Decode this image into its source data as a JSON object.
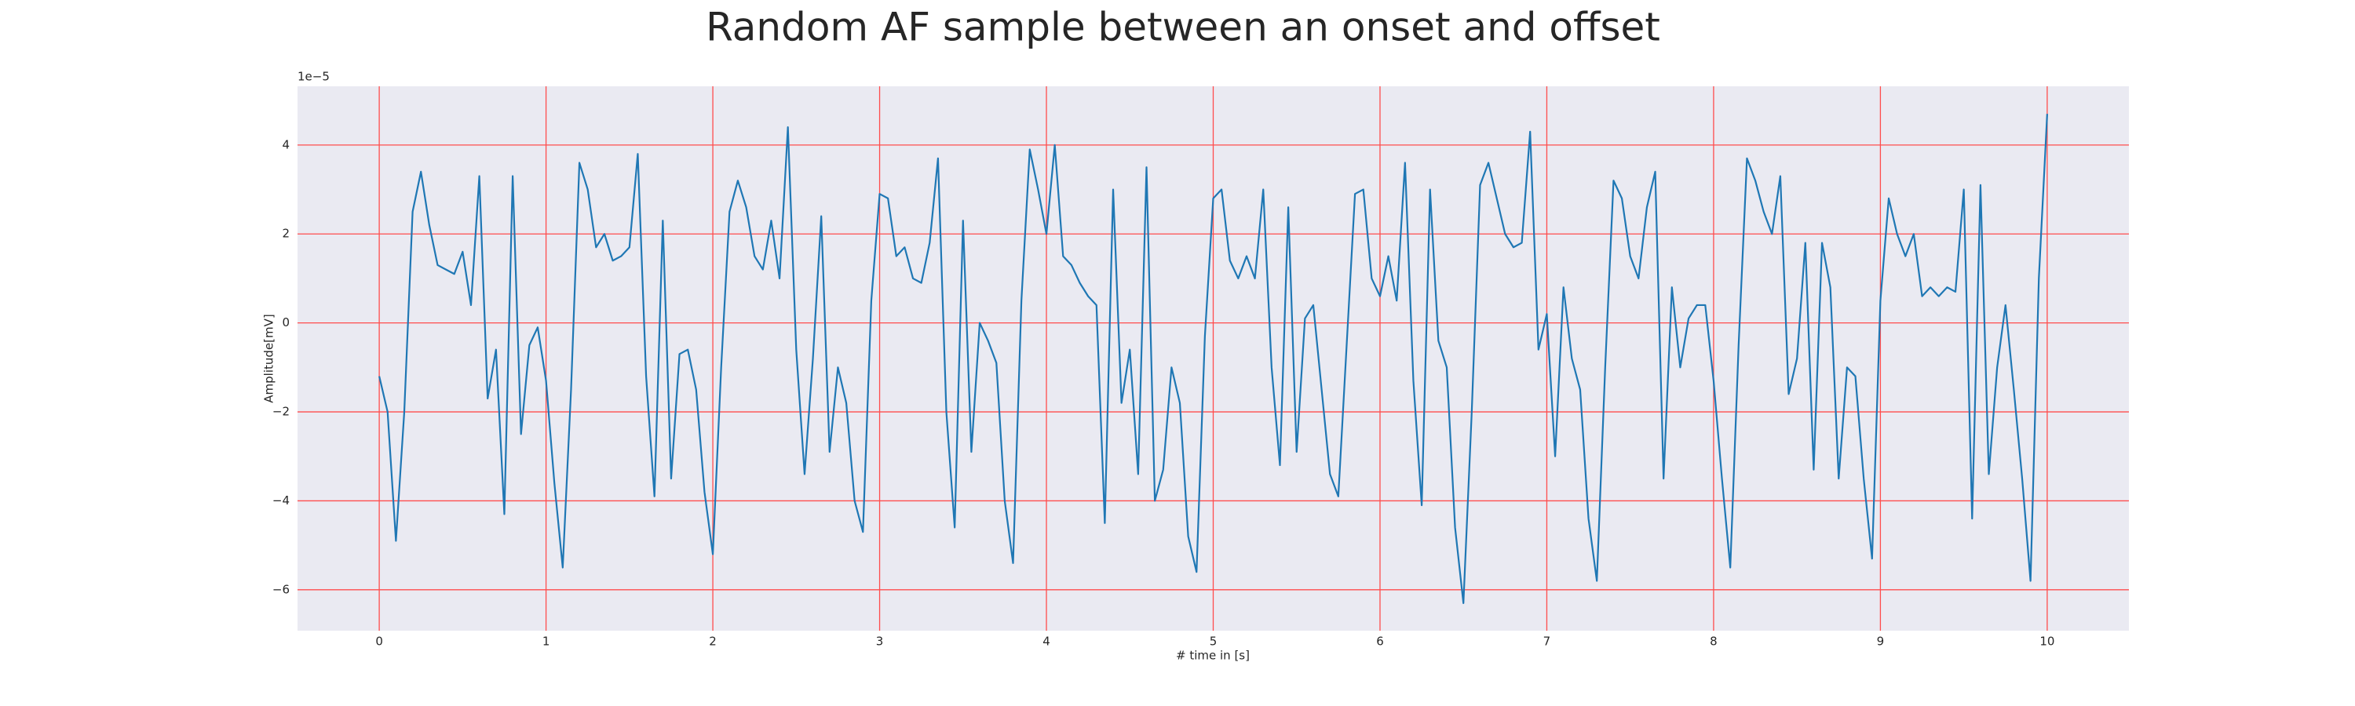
{
  "chart_data": {
    "type": "line",
    "title": "Random AF sample between an onset and offset",
    "xlabel": "# time in [s]",
    "ylabel": "Amplitude[mV]",
    "y_offset_text": "1e−5",
    "xlim": [
      -0.49,
      10.49
    ],
    "ylim": [
      -6.92,
      5.32
    ],
    "xticks": [
      0,
      1,
      2,
      3,
      4,
      5,
      6,
      7,
      8,
      9,
      10
    ],
    "yticks": [
      {
        "value": -6,
        "label": "−6"
      },
      {
        "value": -4,
        "label": "−4"
      },
      {
        "value": -2,
        "label": "−2"
      },
      0,
      2,
      4
    ],
    "grid": true,
    "grid_color": "#ff4d4d",
    "background": "#eaeaf2",
    "x": [
      0,
      0.05,
      0.1,
      0.15,
      0.2,
      0.25,
      0.3,
      0.35,
      0.4,
      0.45,
      0.5,
      0.55,
      0.6,
      0.65,
      0.7,
      0.75,
      0.8,
      0.85,
      0.9,
      0.95,
      1,
      1.05,
      1.1,
      1.15,
      1.2,
      1.25,
      1.3,
      1.35,
      1.4,
      1.45,
      1.5,
      1.55,
      1.6,
      1.65,
      1.7,
      1.75,
      1.8,
      1.85,
      1.9,
      1.95,
      2,
      2.05,
      2.1,
      2.15,
      2.2,
      2.25,
      2.3,
      2.35,
      2.4,
      2.45,
      2.5,
      2.55,
      2.6,
      2.65,
      2.7,
      2.75,
      2.8,
      2.85,
      2.9,
      2.95,
      3,
      3.05,
      3.1,
      3.15,
      3.2,
      3.25,
      3.3,
      3.35,
      3.4,
      3.45,
      3.5,
      3.55,
      3.6,
      3.65,
      3.7,
      3.75,
      3.8,
      3.85,
      3.9,
      3.95,
      4,
      4.05,
      4.1,
      4.15,
      4.2,
      4.25,
      4.3,
      4.35,
      4.4,
      4.45,
      4.5,
      4.55,
      4.6,
      4.65,
      4.7,
      4.75,
      4.8,
      4.85,
      4.9,
      4.95,
      5,
      5.05,
      5.1,
      5.15,
      5.2,
      5.25,
      5.3,
      5.35,
      5.4,
      5.45,
      5.5,
      5.55,
      5.6,
      5.65,
      5.7,
      5.75,
      5.8,
      5.85,
      5.9,
      5.95,
      6,
      6.05,
      6.1,
      6.15,
      6.2,
      6.25,
      6.3,
      6.35,
      6.4,
      6.45,
      6.5,
      6.55,
      6.6,
      6.65,
      6.7,
      6.75,
      6.8,
      6.85,
      6.9,
      6.95,
      7,
      7.05,
      7.1,
      7.15,
      7.2,
      7.25,
      7.3,
      7.35,
      7.4,
      7.45,
      7.5,
      7.55,
      7.6,
      7.65,
      7.7,
      7.75,
      7.8,
      7.85,
      7.9,
      7.95,
      8,
      8.05,
      8.1,
      8.15,
      8.2,
      8.25,
      8.3,
      8.35,
      8.4,
      8.45,
      8.5,
      8.55,
      8.6,
      8.65,
      8.7,
      8.75,
      8.8,
      8.85,
      8.9,
      8.95,
      9,
      9.05,
      9.1,
      9.15,
      9.2,
      9.25,
      9.3,
      9.35,
      9.4,
      9.45,
      9.5,
      9.55,
      9.6,
      9.65,
      9.7,
      9.75,
      9.8,
      9.85,
      9.9,
      9.95,
      10
    ],
    "series": [
      {
        "color": "#1f77b4",
        "values": [
          -1.2,
          -2.0,
          -4.9,
          -2.0,
          2.5,
          3.4,
          2.2,
          1.3,
          1.2,
          1.1,
          1.6,
          0.4,
          3.3,
          -1.7,
          -0.6,
          -4.3,
          3.3,
          -2.5,
          -0.5,
          -0.1,
          -1.3,
          -3.6,
          -5.5,
          -1.5,
          3.6,
          3.0,
          1.7,
          2.0,
          1.4,
          1.5,
          1.7,
          3.8,
          -1.2,
          -3.9,
          2.3,
          -3.5,
          -0.7,
          -0.6,
          -1.5,
          -3.8,
          -5.2,
          -1.0,
          2.5,
          3.2,
          2.6,
          1.5,
          1.2,
          2.3,
          1.0,
          4.4,
          -0.6,
          -3.4,
          -0.8,
          2.4,
          -2.9,
          -1.0,
          -1.8,
          -4.0,
          -4.7,
          0.5,
          2.9,
          2.8,
          1.5,
          1.7,
          1.0,
          0.9,
          1.8,
          3.7,
          -2.0,
          -4.6,
          2.3,
          -2.9,
          0.0,
          -0.4,
          -0.9,
          -4.0,
          -5.4,
          0.5,
          3.9,
          3.0,
          2.0,
          4.0,
          1.5,
          1.3,
          0.9,
          0.6,
          0.4,
          -4.5,
          3.0,
          -1.8,
          -0.6,
          -3.4,
          3.5,
          -4.0,
          -3.3,
          -1.0,
          -1.8,
          -4.8,
          -5.6,
          -0.3,
          2.8,
          3.0,
          1.4,
          1.0,
          1.5,
          1.0,
          3.0,
          -1.0,
          -3.2,
          2.6,
          -2.9,
          0.1,
          0.4,
          -1.5,
          -3.4,
          -3.9,
          -0.5,
          2.9,
          3.0,
          1.0,
          0.6,
          1.5,
          0.5,
          3.6,
          -1.3,
          -4.1,
          3.0,
          -0.4,
          -1.0,
          -4.6,
          -6.3,
          -2.0,
          3.1,
          3.6,
          2.8,
          2.0,
          1.7,
          1.8,
          4.3,
          -0.6,
          0.2,
          -3.0,
          0.8,
          -0.8,
          -1.5,
          -4.4,
          -5.8,
          -1.0,
          3.2,
          2.8,
          1.5,
          1.0,
          2.6,
          3.4,
          -3.5,
          0.8,
          -1.0,
          0.1,
          0.4,
          0.4,
          -1.3,
          -3.5,
          -5.5,
          -0.5,
          3.7,
          3.2,
          2.5,
          2.0,
          3.3,
          -1.6,
          -0.8,
          1.8,
          -3.3,
          1.8,
          0.8,
          -3.5,
          -1.0,
          -1.2,
          -3.5,
          -5.3,
          0.5,
          2.8,
          2.0,
          1.5,
          2.0,
          0.6,
          0.8,
          0.6,
          0.8,
          0.7,
          3.0,
          -4.4,
          3.1,
          -3.4,
          -1.0,
          0.4,
          -1.5,
          -3.5,
          -5.8,
          1.0,
          4.7
        ]
      }
    ]
  }
}
